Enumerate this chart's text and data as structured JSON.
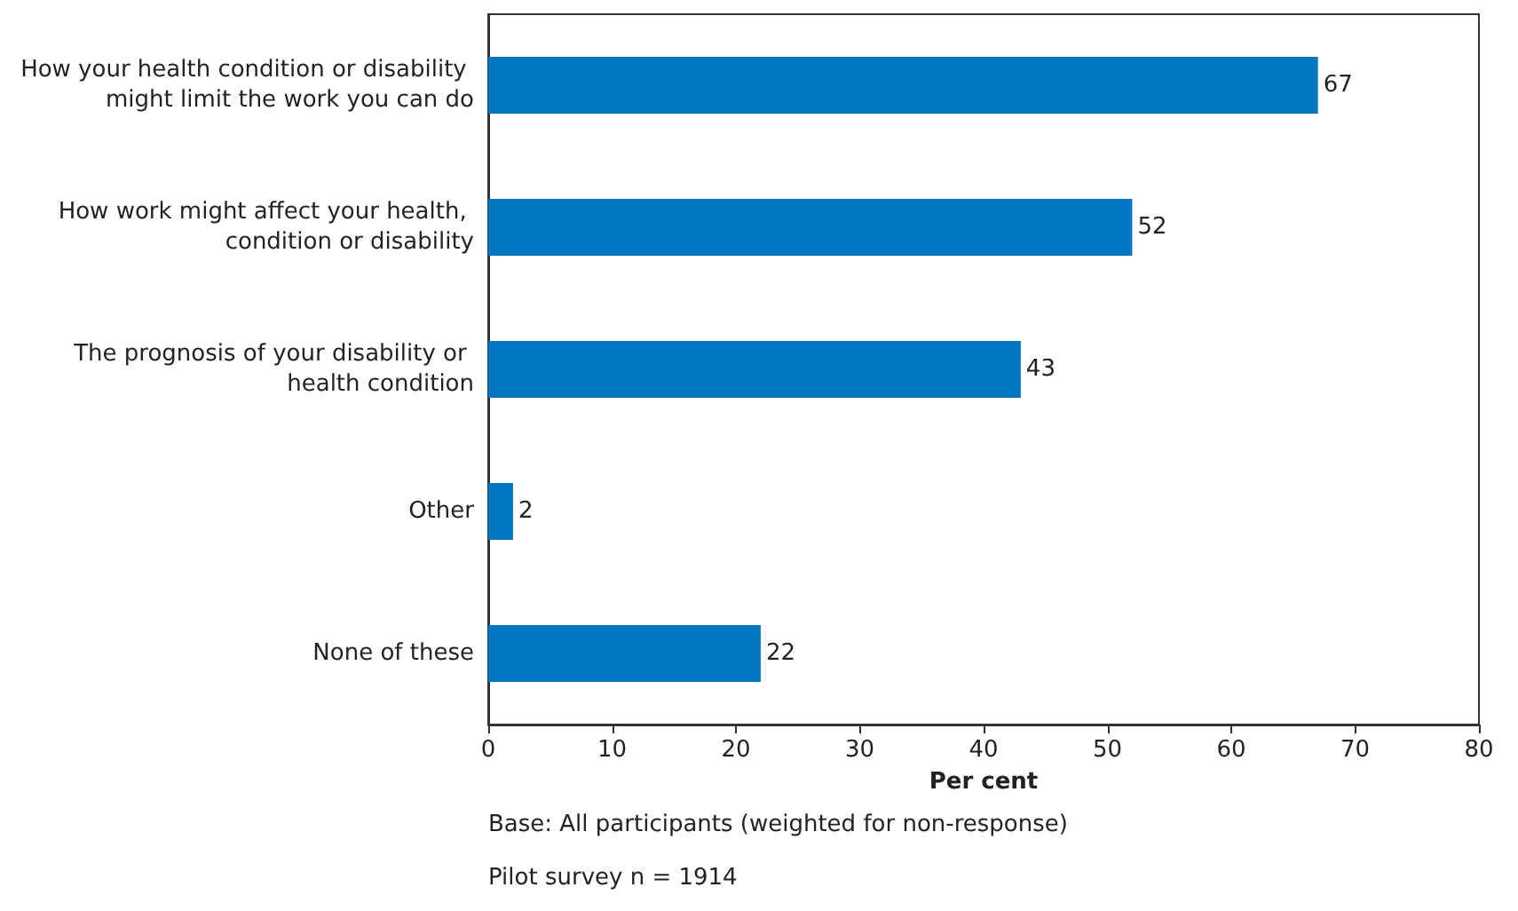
{
  "chart_data": {
    "type": "bar",
    "orientation": "horizontal",
    "categories": [
      "How your health condition or disability might limit the work you can do",
      "How work might affect your health, condition or disability",
      "The prognosis of your disability or health condition",
      "Other",
      "None of these"
    ],
    "values": [
      67,
      52,
      43,
      2,
      22
    ],
    "color": "#0077c0",
    "xlim": [
      0,
      80
    ],
    "xticks": [
      0,
      10,
      20,
      30,
      40,
      50,
      60,
      70,
      80
    ],
    "xlabel": "Per cent",
    "data_labels": true,
    "annotations": [
      "Base: All participants (weighted for non-response)",
      "Pilot survey n = 1914"
    ]
  }
}
